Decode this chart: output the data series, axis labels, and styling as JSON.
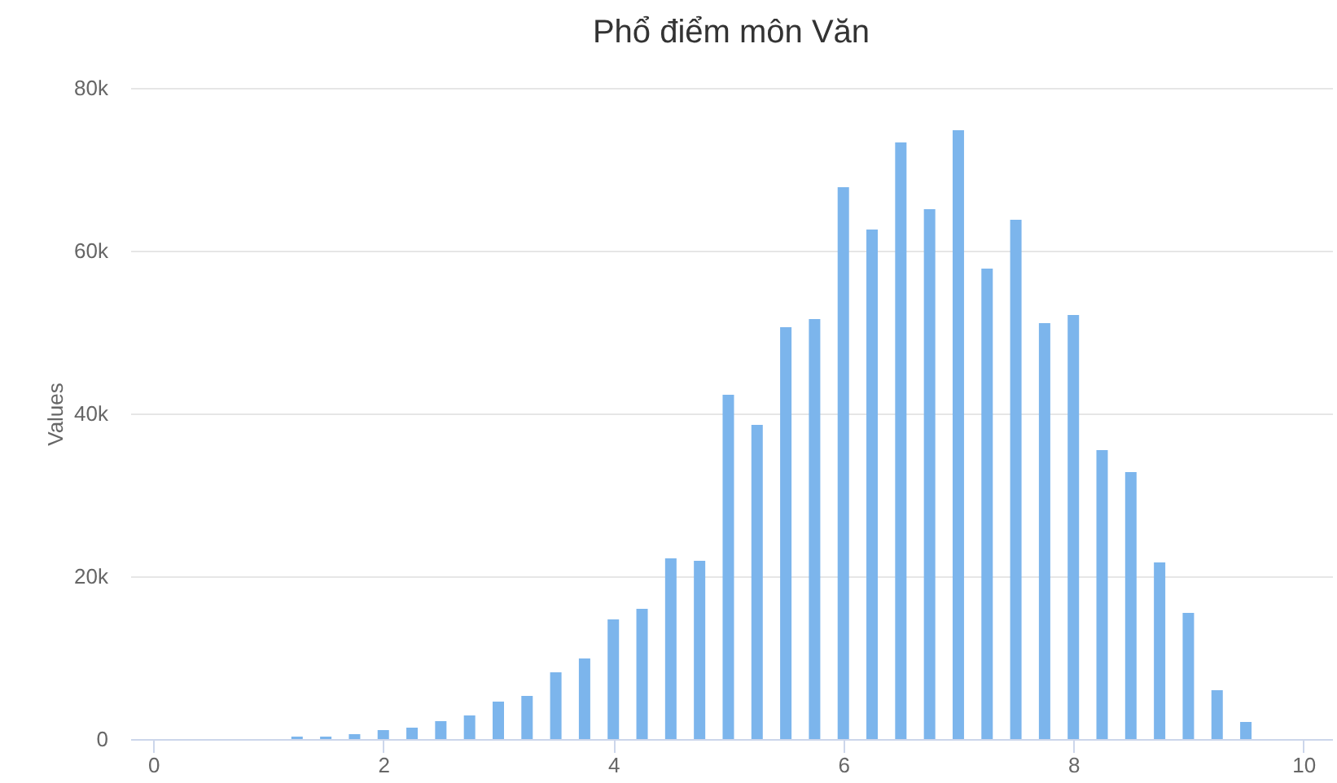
{
  "chart_data": {
    "type": "bar",
    "title": "Phổ điểm môn Văn",
    "ylabel": "Values",
    "x": [
      1.25,
      1.5,
      1.75,
      2,
      2.25,
      2.5,
      2.75,
      3,
      3.25,
      3.5,
      3.75,
      4,
      4.25,
      4.5,
      4.75,
      5,
      5.25,
      5.5,
      5.75,
      6,
      6.25,
      6.5,
      6.75,
      7,
      7.25,
      7.5,
      7.75,
      8,
      8.25,
      8.5,
      8.75,
      9,
      9.25,
      9.5
    ],
    "values": [
      300,
      300,
      600,
      1100,
      1400,
      2200,
      2900,
      4600,
      5300,
      8200,
      9900,
      14700,
      16000,
      22200,
      21900,
      42300,
      38600,
      50600,
      51600,
      67800,
      62600,
      73300,
      65100,
      74800,
      57800,
      63800,
      51100,
      52100,
      35500,
      32800,
      21700,
      15500,
      6000,
      2100
    ],
    "color": "#7cb5ec",
    "xlim": [
      -0.2,
      10.25
    ],
    "xticks": [
      0,
      2,
      4,
      6,
      8,
      10
    ],
    "ylim": [
      0,
      80000
    ],
    "yticks": [
      {
        "value": 0,
        "label": "0"
      },
      {
        "value": 20000,
        "label": "20k"
      },
      {
        "value": 40000,
        "label": "40k"
      },
      {
        "value": 60000,
        "label": "60k"
      },
      {
        "value": 80000,
        "label": "80k"
      }
    ],
    "grid": "y"
  }
}
